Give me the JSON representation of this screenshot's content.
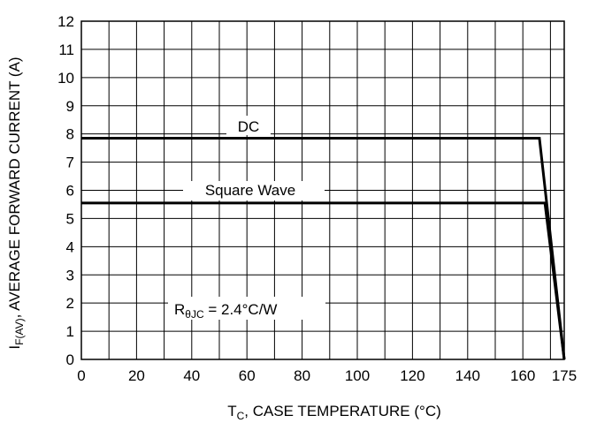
{
  "chart_data": {
    "type": "line",
    "xlabel": {
      "main": "T",
      "sub": "C",
      "rest": ", CASE TEMPERATURE (°C)"
    },
    "ylabel": {
      "main": "I",
      "sub": "F(AV)",
      "rest": ", AVERAGE FORWARD CURRENT (A)"
    },
    "xlim": [
      0,
      175
    ],
    "ylim": [
      0,
      12
    ],
    "xticks": [
      0,
      20,
      40,
      60,
      80,
      100,
      120,
      140,
      160,
      175
    ],
    "yticks": [
      0,
      1,
      2,
      3,
      4,
      5,
      6,
      7,
      8,
      9,
      10,
      11,
      12
    ],
    "x_grid": [
      0,
      10,
      20,
      30,
      40,
      50,
      60,
      70,
      80,
      90,
      100,
      110,
      120,
      130,
      140,
      150,
      160,
      170,
      175
    ],
    "grid": true,
    "series": [
      {
        "name": "DC",
        "x": [
          0,
          166,
          175
        ],
        "y": [
          7.85,
          7.85,
          0
        ]
      },
      {
        "name": "Square Wave",
        "x": [
          0,
          168,
          175
        ],
        "y": [
          5.55,
          5.55,
          0
        ]
      }
    ],
    "annotation": {
      "main": "R",
      "sub": "θJC",
      "rest": " = 2.4°C/W"
    },
    "colors": {
      "line": "#000000",
      "grid": "#000000",
      "background": "#ffffff"
    }
  }
}
